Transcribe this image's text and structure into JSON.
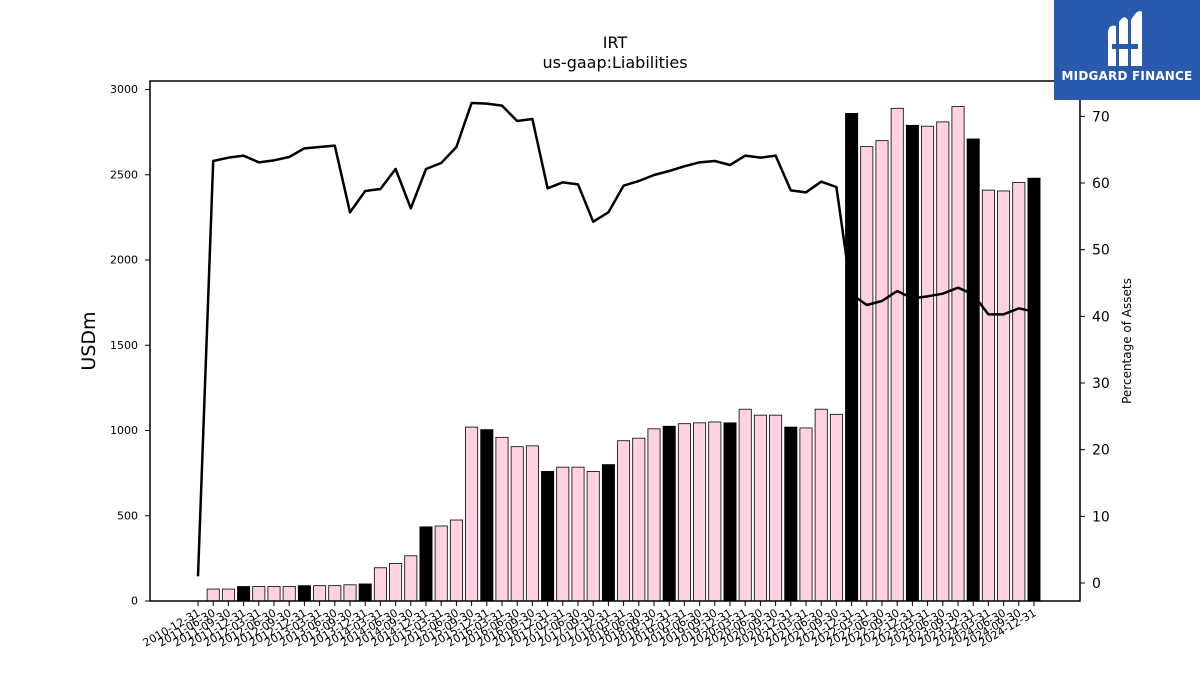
{
  "chart_data": {
    "type": "bar+line",
    "title": "IRT",
    "subtitle": "us-gaap:Liabilities",
    "ylabel": "USDm",
    "y2label": "Percentage of Assets",
    "ylim": [
      0,
      3050
    ],
    "y2lim": [
      -2.7,
      75.3
    ],
    "yticks": [
      0,
      500,
      1000,
      1500,
      2000,
      2500,
      3000
    ],
    "y2ticks": [
      0,
      10,
      20,
      30,
      40,
      50,
      60,
      70
    ],
    "grid": false,
    "legend": "none",
    "colors": {
      "bar_default": "#ffd1e3",
      "bar_highlight": "#000000",
      "line": "#000000"
    },
    "categories": [
      "2010-12-31",
      "2011-06-30",
      "2011-09-30",
      "2011-12-31",
      "2012-03-31",
      "2012-06-30",
      "2012-09-30",
      "2012-12-31",
      "2013-03-31",
      "2013-06-30",
      "2013-09-30",
      "2013-12-31",
      "2014-03-31",
      "2014-06-30",
      "2014-09-30",
      "2014-12-31",
      "2015-03-31",
      "2015-06-30",
      "2015-09-30",
      "2015-12-31",
      "2016-03-31",
      "2016-06-30",
      "2016-09-30",
      "2016-12-31",
      "2017-03-31",
      "2017-06-30",
      "2017-09-30",
      "2017-12-31",
      "2018-03-31",
      "2018-06-30",
      "2018-09-30",
      "2018-12-31",
      "2019-03-31",
      "2019-06-30",
      "2019-09-30",
      "2019-12-31",
      "2020-03-31",
      "2020-06-30",
      "2020-09-30",
      "2020-12-31",
      "2021-03-31",
      "2021-06-30",
      "2021-09-30",
      "2021-12-31",
      "2022-03-31",
      "2022-06-30",
      "2022-09-30",
      "2022-12-31",
      "2023-03-31",
      "2023-06-30",
      "2023-09-30",
      "2023-12-31",
      "2024-03-31",
      "2024-06-30",
      "2024-09-30",
      "2024-12-31"
    ],
    "xtick_labels": [
      "2010-12-31",
      "2011-06-30",
      "2011-09-30",
      "2011-12-31",
      "2012-03-31",
      "2012-06-30",
      "2012-09-30",
      "2012-12-31",
      "2013-03-31",
      "2013-06-30",
      "2013-09-30",
      "2013-12-31",
      "2014-03-31",
      "2014-06-30",
      "2014-09-30",
      "2014-12-31",
      "2015-03-31",
      "2015-06-30",
      "2015-09-30",
      "2015-12-31",
      "2016-03-31",
      "2016-06-30",
      "2016-09-30",
      "2016-12-31",
      "2017-03-31",
      "2017-06-30",
      "2017-09-30",
      "2017-12-31",
      "2018-03-31",
      "2018-06-30",
      "2018-09-30",
      "2018-12-31",
      "2019-03-31",
      "2019-06-30",
      "2019-09-30",
      "2019-12-31",
      "2020-03-31",
      "2020-06-30",
      "2020-09-30",
      "2020-12-31",
      "2021-03-31",
      "2021-06-30",
      "2021-09-30",
      "2021-12-31",
      "2022-03-31",
      "2022-06-30",
      "2022-09-30",
      "2022-12-31",
      "2023-03-31",
      "2023-06-30",
      "2023-09-30",
      "2023-12-31",
      "2024-03-31",
      "2024-06-30",
      "2024-09-30",
      "2024-12-31"
    ],
    "bars": [
      0,
      70,
      70,
      85,
      85,
      85,
      85,
      90,
      90,
      90,
      95,
      100,
      195,
      220,
      265,
      435,
      440,
      475,
      1020,
      1005,
      960,
      905,
      910,
      760,
      785,
      785,
      760,
      800,
      940,
      955,
      1010,
      1025,
      1040,
      1045,
      1050,
      1045,
      1125,
      1090,
      1090,
      1020,
      1015,
      1125,
      1095,
      2860,
      2665,
      2700,
      2890,
      2790,
      2785,
      2810,
      2900,
      2710,
      2410,
      2405,
      2455,
      2480
    ],
    "highlight": [
      false,
      false,
      false,
      true,
      false,
      false,
      false,
      true,
      false,
      false,
      false,
      true,
      false,
      false,
      false,
      true,
      false,
      false,
      false,
      true,
      false,
      false,
      false,
      true,
      false,
      false,
      false,
      true,
      false,
      false,
      false,
      true,
      false,
      false,
      false,
      true,
      false,
      false,
      false,
      true,
      false,
      false,
      false,
      true,
      false,
      false,
      false,
      true,
      false,
      false,
      false,
      true,
      false,
      false,
      false,
      true
    ],
    "line_values": [
      1.0,
      63.3,
      63.8,
      64.1,
      63.1,
      63.4,
      63.9,
      65.2,
      65.4,
      65.6,
      55.6,
      58.8,
      59.1,
      62.1,
      56.2,
      62.1,
      63.0,
      65.4,
      72.0,
      71.9,
      71.6,
      69.3,
      69.6,
      59.2,
      60.1,
      59.8,
      54.2,
      55.6,
      59.6,
      60.3,
      61.2,
      61.8,
      62.5,
      63.1,
      63.3,
      62.7,
      64.1,
      63.8,
      64.1,
      58.9,
      58.6,
      60.2,
      59.4,
      43.3,
      41.7,
      42.3,
      43.8,
      42.7,
      43.0,
      43.4,
      44.3,
      43.3,
      40.3,
      40.3,
      41.2,
      40.7
    ]
  },
  "brand": {
    "name": "MIDGARD FINANCE"
  }
}
